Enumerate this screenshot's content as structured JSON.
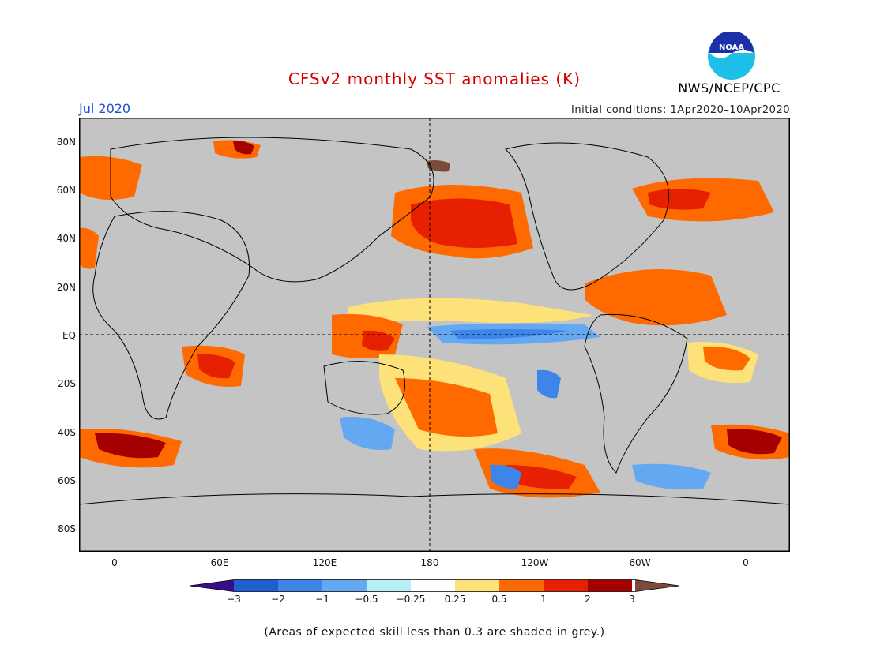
{
  "header": {
    "title": "CFSv2 monthly SST anomalies (K)",
    "month": "Jul 2020",
    "initial_conditions": "Initial conditions: 1Apr2020–10Apr2020",
    "agency": "NWS/NCEP/CPC",
    "logo_text": "NOAA"
  },
  "axes": {
    "lat_labels": [
      "80N",
      "60N",
      "40N",
      "20N",
      "EQ",
      "20S",
      "40S",
      "60S",
      "80S"
    ],
    "lon_labels": [
      "0",
      "60E",
      "120E",
      "180",
      "120W",
      "60W",
      "0"
    ]
  },
  "colorbar": {
    "labels": [
      "−3",
      "−2",
      "−1",
      "−0.5",
      "−0.25",
      "0.25",
      "0.5",
      "1",
      "2",
      "3"
    ],
    "colors": [
      "#3a0c8c",
      "#1f5fd0",
      "#3d85e8",
      "#64a8f2",
      "#b8eef5",
      "#ffffff",
      "#fde27a",
      "#ff6a00",
      "#e62000",
      "#a50000",
      "#7a4a3a"
    ]
  },
  "footnote": "(Areas of expected skill less than 0.3 are shaded in grey.)",
  "colors": {
    "land_mask": "#c4c4c4",
    "title": "#d40000",
    "month": "#1f4fd6"
  }
}
